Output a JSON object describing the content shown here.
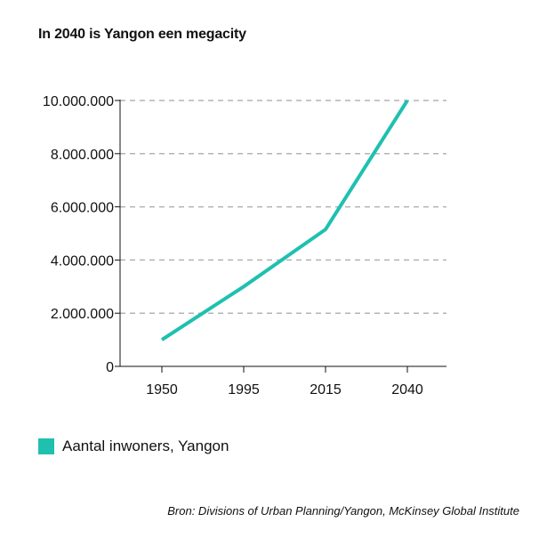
{
  "title": "In 2040 is Yangon een megacity",
  "source": "Bron: Divisions of Urban Planning/Yangon, McKinsey Global Institute",
  "colors": {
    "line": "#1fc0b0",
    "grid": "#b3b3b3",
    "axis": "#111111"
  },
  "chart_data": {
    "type": "line",
    "title": "In 2040 is Yangon een megacity",
    "categories": [
      "1950",
      "1995",
      "2015",
      "2040"
    ],
    "series": [
      {
        "name": "Aantal inwoners, Yangon",
        "values": [
          1000000,
          3000000,
          5150000,
          10000000
        ]
      }
    ],
    "ylim": [
      0,
      10000000
    ],
    "yticks": [
      0,
      2000000,
      4000000,
      6000000,
      8000000,
      10000000
    ],
    "ytick_labels": [
      "0",
      "2.000.000",
      "4.000.000",
      "6.000.000",
      "8.000.000",
      "10.000.000"
    ],
    "grid": "horizontal-dashed",
    "legend_position": "bottom-left"
  }
}
